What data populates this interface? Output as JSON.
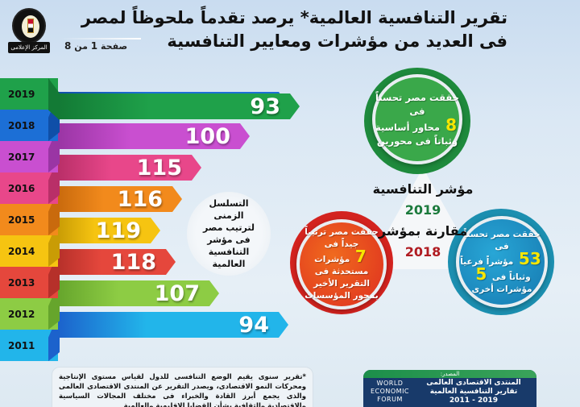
{
  "header": {
    "title_line1": "تقرير التنافسية العالمية* يرصد تقدماً ملحوظاً لمصر",
    "title_line2": "فى العديد من مؤشرات ومعايير التنافسية",
    "page_label_prefix": "صفحة",
    "page_current": "1",
    "page_sep": "من",
    "page_total": "8",
    "logo_banner": "المركز الإعلامى",
    "logo_ring": "رئاسة مجلس الوزراء - جمهورية مصر العربية"
  },
  "chart_data": {
    "type": "bar",
    "title": "التسلسل الزمنى لترتيب مصر فى مؤشر التنافسية العالمية",
    "categories": [
      "2019",
      "2018",
      "2017",
      "2016",
      "2015",
      "2014",
      "2013",
      "2012",
      "2011"
    ],
    "values": [
      93,
      94,
      100,
      115,
      116,
      119,
      118,
      107,
      94
    ],
    "series": [
      {
        "name": "ترتيب مصر",
        "values": [
          93,
          94,
          100,
          115,
          116,
          119,
          118,
          107,
          94
        ]
      }
    ],
    "xlabel": "",
    "ylabel": "",
    "orientation": "horizontal",
    "colors": [
      "#1fa14a",
      "#1c6fd6",
      "#c94fd0",
      "#e8478a",
      "#f28a1c",
      "#f6c411",
      "#e5473c",
      "#8dcc44",
      "#22b5ea"
    ]
  },
  "rows": [
    {
      "year": "2019",
      "value": "93",
      "color": "#1fa14a",
      "dark": "#137a35",
      "end": 372
    },
    {
      "year": "2018",
      "value": "94",
      "color": "#1c6fd6",
      "dark": "#0f4fa8",
      "end": 358
    },
    {
      "year": "2017",
      "value": "100",
      "color": "#c94fd0",
      "dark": "#9a35a4",
      "end": 310
    },
    {
      "year": "2016",
      "value": "115",
      "color": "#e8478a",
      "dark": "#b92f68",
      "end": 250
    },
    {
      "year": "2015",
      "value": "116",
      "color": "#f28a1c",
      "dark": "#c96a0d",
      "end": 226
    },
    {
      "year": "2014",
      "value": "119",
      "color": "#f6c411",
      "dark": "#c99c05",
      "end": 199
    },
    {
      "year": "2013",
      "value": "118",
      "color": "#e5473c",
      "dark": "#b6302a",
      "end": 218
    },
    {
      "year": "2012",
      "value": "107",
      "color": "#8dcc44",
      "dark": "#66a52c",
      "end": 272
    },
    {
      "year": "2011",
      "value": "94",
      "color": "#22b5ea",
      "dark": "#1c62cc",
      "end": 358
    }
  ],
  "note_bubble": "التسلسل الزمنى لترتيب مصر فى مؤشر التنافسية العالمية",
  "hub": {
    "line1": "مؤشر التنافسية",
    "line2": "2019",
    "line3": "مقارنة بمؤشر",
    "line4": "2018"
  },
  "circles": {
    "green": {
      "before": "حققت مصر تحسناً فى",
      "num": "8",
      "after": "محاور أساسية وثباتاً فى محورين",
      "color": "#3aa84a",
      "ring": "#1e8a3c"
    },
    "red": {
      "before": "حققت مصر ترتيباً جيداً فى",
      "num": "7",
      "after": "مؤشرات مستحدثة فى التقرير الأخير بمحور المؤسسات",
      "color": "#e84a24",
      "ring": "#d3231f"
    },
    "blue": {
      "before": "حققت مصر تحسناً فى",
      "num": "53",
      "mid": "مؤشراً فرعياً وثباتاً فى",
      "num2": "5",
      "after": "مؤشرات أخرى",
      "color": "#1b8fc0",
      "ring": "#1c8fb0"
    }
  },
  "footnote": "*تقرير سنوى يقيم الوضع التنافسى للدول لقياس مستوى الإنتاجية ومحركات النمو الاقتصادى، ويصدر التقرير عن المنتدى الاقتصادى العالمى والذى يجمع أبرز القادة والخبراء فى مختلف المجالات السياسية والاقتصادية والثقافية بشأن القضايا الإقليمية والعالمية",
  "source": {
    "label": "المصدر:",
    "org_logo_lines": [
      "WORLD",
      "ECONOMIC",
      "FORUM"
    ],
    "line1": "المنتدى الاقتصادى العالمى",
    "line2": "تقارير التنافسية العالمية",
    "line3": "2019 - 2011"
  }
}
